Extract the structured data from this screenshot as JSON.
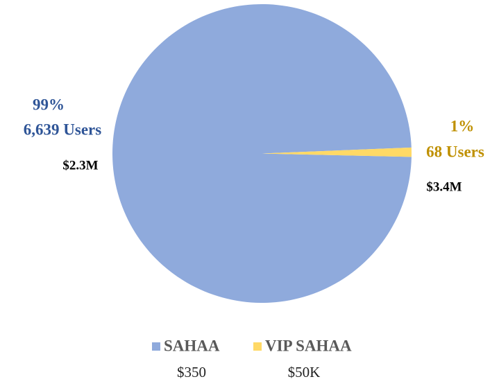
{
  "chart_data": {
    "type": "pie",
    "categories": [
      "SAHAA",
      "VIP SAHAA"
    ],
    "values": [
      99,
      1
    ],
    "value_labels": [
      "99%",
      "1%"
    ],
    "colors": [
      "#8faadc",
      "#ffd966"
    ],
    "label_colors": [
      "#2f5597",
      "#bf9000"
    ],
    "users": [
      "6,639 Users",
      "68 Users"
    ],
    "revenue": [
      "$2.3M",
      "$3.4M"
    ],
    "price": [
      "$350",
      "$50K"
    ],
    "legend": "bottom"
  }
}
